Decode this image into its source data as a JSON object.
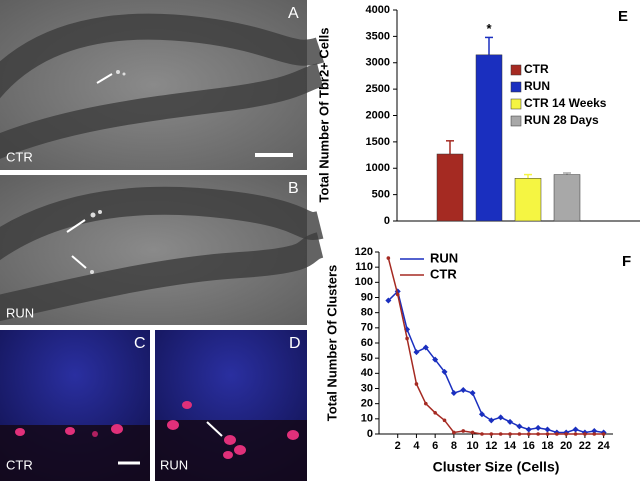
{
  "panels": [
    {
      "letter": "A",
      "label": "CTR"
    },
    {
      "letter": "B",
      "label": "RUN"
    },
    {
      "letter": "C",
      "label": "CTR"
    },
    {
      "letter": "D",
      "label": "RUN"
    }
  ],
  "chart_data": [
    {
      "type": "bar",
      "panel": "E",
      "y_label": "Total Number Of Tbr2+ Cells",
      "categories": [
        "CTR",
        "RUN",
        "CTR 14 Weeks",
        "RUN 28 Days"
      ],
      "colors": [
        "#a52a22",
        "#1a2fbf",
        "#f5f542",
        "#a8a8a8"
      ],
      "values": [
        1270,
        3150,
        810,
        880
      ],
      "errors": [
        250,
        330,
        70,
        30
      ],
      "annotation": "*",
      "ylim": [
        0,
        4000
      ],
      "yticks": [
        0,
        500,
        1000,
        1500,
        2000,
        2500,
        3000,
        3500,
        4000
      ]
    },
    {
      "type": "line",
      "panel": "F",
      "x_label": "Cluster Size (Cells)",
      "y_label": "Total Number Of Clusters",
      "x": [
        1,
        2,
        3,
        4,
        5,
        6,
        7,
        8,
        9,
        10,
        11,
        12,
        13,
        14,
        15,
        16,
        17,
        18,
        19,
        20,
        21,
        22,
        23,
        24
      ],
      "series": [
        {
          "name": "RUN",
          "color": "#1a2fbf",
          "values": [
            88,
            94,
            69,
            54,
            57,
            49,
            41,
            27,
            29,
            27,
            13,
            9,
            11,
            8,
            5,
            3,
            4,
            3,
            1,
            1,
            3,
            1,
            2,
            1
          ]
        },
        {
          "name": "CTR",
          "color": "#a52a22",
          "values": [
            116,
            92,
            63,
            33,
            20,
            14,
            9,
            1,
            2,
            1,
            0,
            0,
            0,
            0,
            0,
            0,
            0,
            0,
            0,
            0,
            0,
            0,
            0,
            0
          ]
        }
      ],
      "xlim": [
        0,
        25
      ],
      "xticks": [
        2,
        4,
        6,
        8,
        10,
        12,
        14,
        16,
        18,
        20,
        22,
        24
      ],
      "ylim": [
        0,
        120
      ],
      "yticks": [
        0,
        10,
        20,
        30,
        40,
        50,
        60,
        70,
        80,
        90,
        100,
        110,
        120
      ]
    }
  ]
}
